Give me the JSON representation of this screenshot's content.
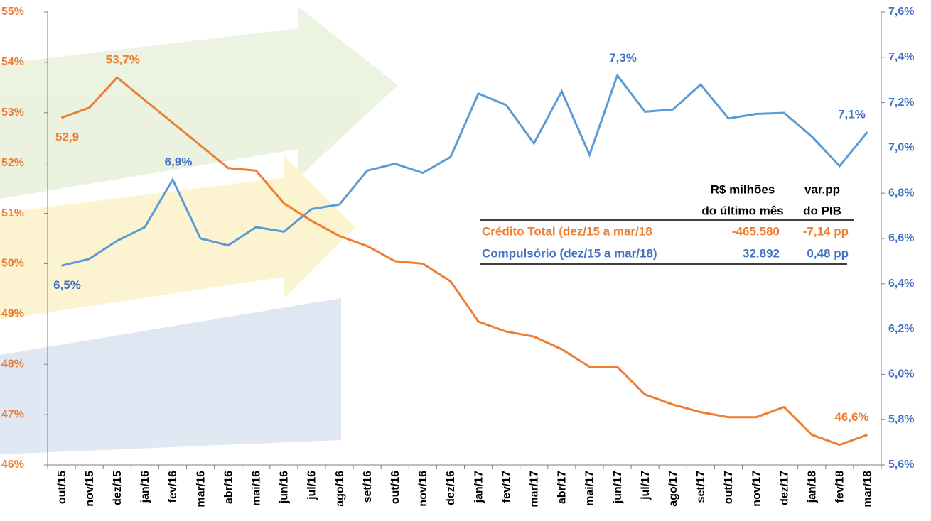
{
  "chart_data": {
    "type": "line",
    "categories": [
      "out/15",
      "nov/15",
      "dez/15",
      "jan/16",
      "fev/16",
      "mar/16",
      "abr/16",
      "mai/16",
      "jun/16",
      "jul/16",
      "ago/16",
      "set/16",
      "out/16",
      "nov/16",
      "dez/16",
      "jan/17",
      "fev/17",
      "mar/17",
      "abr/17",
      "mai/17",
      "jun/17",
      "jul/17",
      "ago/17",
      "set/17",
      "out/17",
      "nov/17",
      "dez/17",
      "jan/18",
      "fev/18",
      "mar/18"
    ],
    "series": [
      {
        "name": "Crédito Total (dez/15 a mar/18",
        "color": "#ED7D31",
        "label_color": "#ED7D31",
        "values": [
          52.9,
          53.1,
          53.7,
          53.25,
          52.8,
          52.35,
          51.9,
          51.85,
          51.2,
          50.85,
          50.55,
          50.35,
          50.05,
          50.0,
          49.65,
          48.85,
          48.65,
          48.55,
          48.3,
          47.95,
          47.95,
          47.4,
          47.2,
          47.05,
          46.95,
          46.95,
          47.15,
          46.6,
          46.4,
          46.6
        ],
        "value_labels": [
          "52,9",
          null,
          "53,7%",
          null,
          null,
          null,
          null,
          null,
          null,
          null,
          null,
          null,
          null,
          null,
          null,
          null,
          null,
          null,
          null,
          null,
          null,
          null,
          null,
          null,
          null,
          null,
          null,
          null,
          null,
          "46,6%"
        ],
        "table_values": [
          "-465.580",
          "-7,14 pp"
        ]
      },
      {
        "name": "Compulsório (dez/15 a mar/18)",
        "color": "#5B9BD5",
        "label_color": "#4472C4",
        "axis": "y2",
        "values": [
          6.48,
          6.51,
          6.59,
          6.65,
          6.86,
          6.6,
          6.57,
          6.65,
          6.63,
          6.73,
          6.75,
          6.9,
          6.93,
          6.89,
          6.96,
          7.24,
          7.19,
          7.02,
          7.25,
          6.97,
          7.32,
          7.16,
          7.17,
          7.28,
          7.13,
          7.15,
          7.155,
          7.05,
          6.92,
          7.07
        ],
        "value_labels": [
          "6,5%",
          null,
          null,
          null,
          "6,9%",
          null,
          null,
          null,
          null,
          null,
          null,
          null,
          null,
          null,
          null,
          null,
          null,
          null,
          null,
          null,
          "7,3%",
          null,
          null,
          null,
          null,
          null,
          null,
          null,
          null,
          "7,1%"
        ],
        "table_values": [
          "32.892",
          "0,48 pp"
        ]
      }
    ],
    "ylim": [
      46,
      55
    ],
    "yticks": [
      {
        "value": 46,
        "label": "46%"
      },
      {
        "value": 47,
        "label": "47%"
      },
      {
        "value": 48,
        "label": "48%"
      },
      {
        "value": 49,
        "label": "49%"
      },
      {
        "value": 50,
        "label": "50%"
      },
      {
        "value": 51,
        "label": "51%"
      },
      {
        "value": 52,
        "label": "52%"
      },
      {
        "value": 53,
        "label": "53%"
      },
      {
        "value": 54,
        "label": "54%"
      },
      {
        "value": 55,
        "label": "55%"
      }
    ],
    "y2lim": [
      5.6,
      7.6
    ],
    "y2ticks": [
      {
        "value": 5.6,
        "label": "5,6%"
      },
      {
        "value": 5.8,
        "label": "5,8%"
      },
      {
        "value": 6.0,
        "label": "6,0%"
      },
      {
        "value": 6.2,
        "label": "6,2%"
      },
      {
        "value": 6.4,
        "label": "6,4%"
      },
      {
        "value": 6.6,
        "label": "6,6%"
      },
      {
        "value": 6.8,
        "label": "6,8%"
      },
      {
        "value": 7.0,
        "label": "7,0%"
      },
      {
        "value": 7.2,
        "label": "7,2%"
      },
      {
        "value": 7.4,
        "label": "7,4%"
      },
      {
        "value": 7.6,
        "label": "7,6%"
      }
    ],
    "table_headers": [
      [
        "R$ milhões",
        "do último mês"
      ],
      [
        "var.pp",
        "do PIB"
      ]
    ]
  }
}
